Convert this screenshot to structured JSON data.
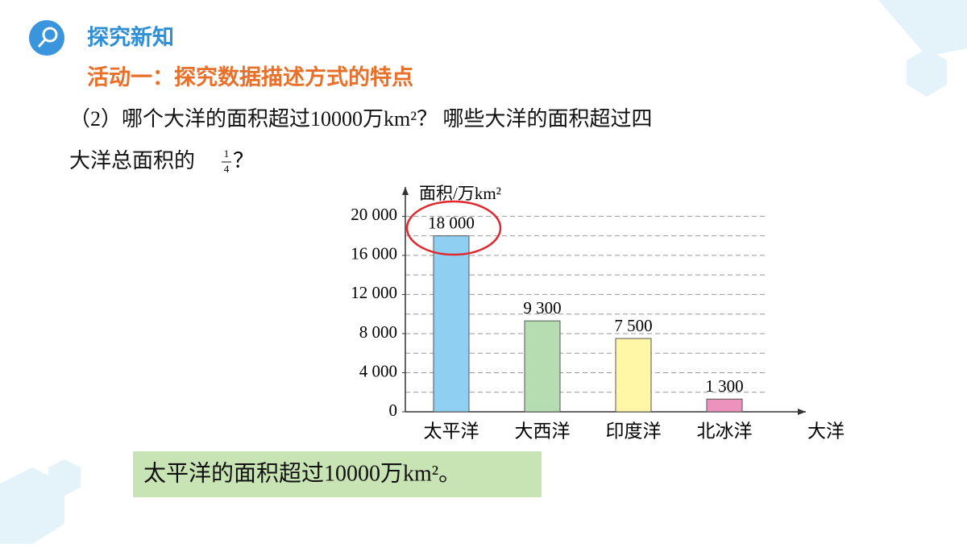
{
  "header": {
    "title": "探究新知",
    "activity": "活动一：探究数据描述方式的特点"
  },
  "question": {
    "line1": "（2）哪个大洋的面积超过10000万km²？ 哪些大洋的面积超过四",
    "line2": "大洋总面积的",
    "numerator": "1",
    "denominator": "4",
    "end": "？"
  },
  "answer": "太平洋的面积超过10000万km²。",
  "chart_data": {
    "type": "bar",
    "y_label": "面积/万km²",
    "x_label": "大洋",
    "categories": [
      "太平洋",
      "大西洋",
      "印度洋",
      "北冰洋"
    ],
    "values": [
      18000,
      9300,
      7500,
      1300
    ],
    "value_labels": [
      "18 000",
      "9 300",
      "7 500",
      "1 300"
    ],
    "colors": [
      "#8fd0f2",
      "#b6ddb2",
      "#fff6a6",
      "#ec92bd"
    ],
    "ylim": [
      0,
      23000
    ],
    "yticks": [
      0,
      {
        "value": 4000,
        "label": "4 000"
      },
      {
        "value": 8000,
        "label": "8 000"
      },
      {
        "value": 12000,
        "label": "12 000"
      },
      {
        "value": 16000,
        "label": "16 000"
      },
      {
        "value": 20000,
        "label": "20 000"
      }
    ],
    "grid_lines": [
      2000,
      4000,
      6000,
      8000,
      10000,
      12000,
      14000,
      16000,
      18000,
      20000
    ],
    "grid": true
  }
}
